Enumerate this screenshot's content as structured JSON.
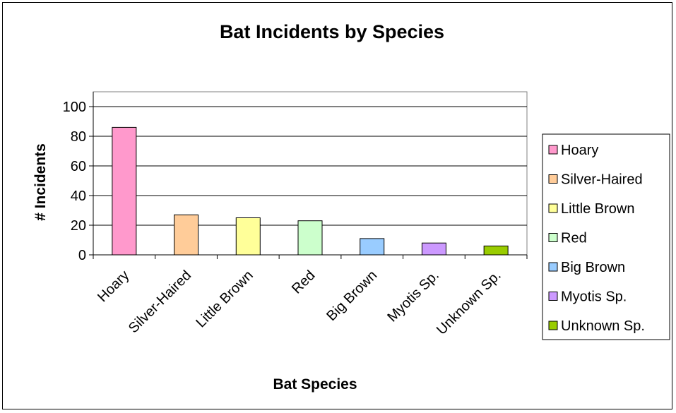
{
  "chart_data": {
    "type": "bar",
    "title": "Bat Incidents by Species",
    "xlabel": "Bat Species",
    "ylabel": "# Incidents",
    "ylim": [
      0,
      110
    ],
    "yticks": [
      0,
      20,
      40,
      60,
      80,
      100
    ],
    "grid": true,
    "legend_position": "right",
    "categories": [
      "Hoary",
      "Silver-Haired",
      "Little Brown",
      "Red",
      "Big Brown",
      "Myotis Sp.",
      "Unknown Sp."
    ],
    "values": [
      86,
      27,
      25,
      23,
      11,
      8,
      6
    ],
    "colors": [
      "#FF99CC",
      "#FFCC99",
      "#FFFF99",
      "#CCFFCC",
      "#99CCFF",
      "#CC99FF",
      "#99CC00"
    ]
  }
}
